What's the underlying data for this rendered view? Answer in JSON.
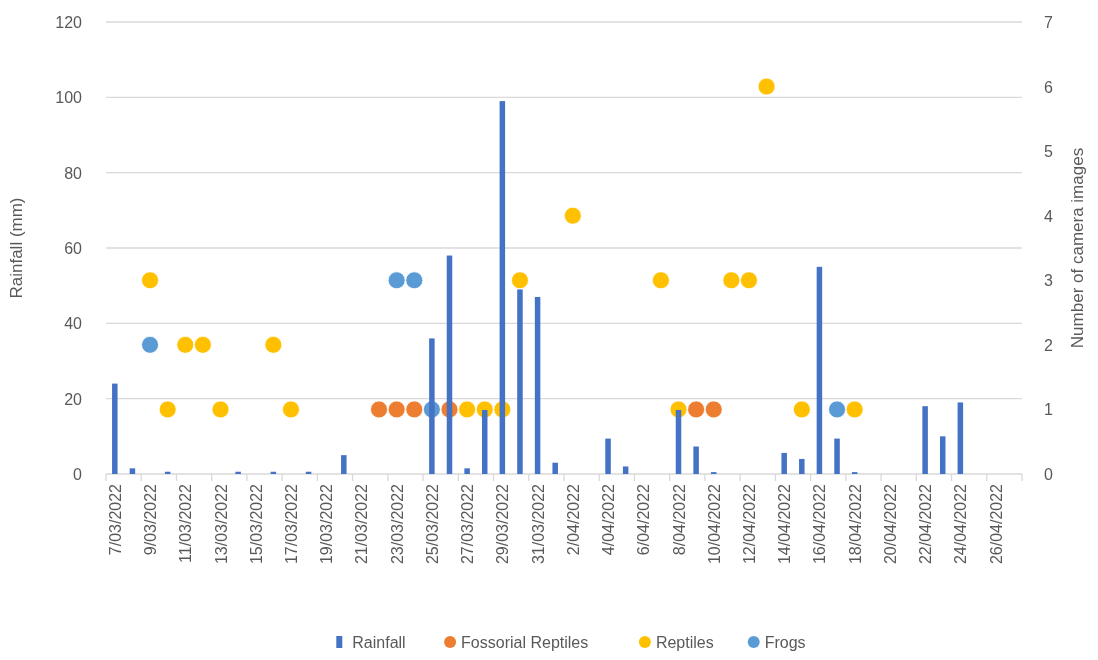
{
  "chart_data": {
    "type": "bar",
    "ylabel": "Rainfall (mm)",
    "y2label": "Number of camera images",
    "categories": [
      "7/03/2022",
      null,
      "9/03/2022",
      null,
      "11/03/2022",
      null,
      "13/03/2022",
      null,
      "15/03/2022",
      null,
      "17/03/2022",
      null,
      "19/03/2022",
      null,
      "21/03/2022",
      null,
      "23/03/2022",
      null,
      "25/03/2022",
      null,
      "27/03/2022",
      null,
      "29/03/2022",
      null,
      "31/03/2022",
      null,
      "2/04/2022",
      null,
      "4/04/2022",
      null,
      "6/04/2022",
      null,
      "8/04/2022",
      null,
      "10/04/2022",
      null,
      "12/04/2022",
      null,
      "14/04/2022",
      null,
      "16/04/2022",
      null,
      "18/04/2022",
      null,
      "20/04/2022",
      null,
      "22/04/2022",
      null,
      "24/04/2022",
      null,
      "26/04/2022",
      null
    ],
    "series": [
      {
        "name": "Rainfall",
        "color": "#4472c4",
        "values": [
          24,
          1.5,
          0,
          0.6,
          0,
          0,
          0,
          0.6,
          0,
          0.6,
          0,
          0.6,
          0,
          5,
          0,
          0,
          0,
          0,
          36,
          58,
          1.5,
          17,
          99,
          49,
          47,
          3,
          0,
          0,
          9.4,
          2,
          0,
          0,
          17,
          7.3,
          0.5,
          0,
          0,
          0,
          5.6,
          4,
          55,
          9.4,
          0.5,
          0,
          0,
          0,
          18,
          10,
          19,
          0,
          0,
          0
        ]
      },
      {
        "name": "Fossorial Reptiles",
        "type": "scatter",
        "axis": "y2",
        "color": "#ed7d31",
        "values": [
          null,
          null,
          null,
          null,
          null,
          null,
          null,
          null,
          null,
          null,
          null,
          null,
          null,
          null,
          null,
          1,
          1,
          1,
          null,
          1,
          null,
          null,
          null,
          null,
          null,
          null,
          null,
          null,
          null,
          null,
          null,
          null,
          null,
          1,
          1,
          null,
          null,
          null,
          null,
          null,
          null,
          null,
          null,
          null,
          null,
          null,
          null,
          null,
          null,
          null,
          null,
          null
        ]
      },
      {
        "name": "Reptiles",
        "type": "scatter",
        "axis": "y2",
        "color": "#ffc000",
        "values": [
          null,
          null,
          3,
          1,
          2,
          2,
          1,
          null,
          null,
          2,
          1,
          null,
          null,
          null,
          null,
          null,
          null,
          null,
          null,
          null,
          1,
          1,
          1,
          3,
          null,
          null,
          4,
          null,
          null,
          null,
          null,
          3,
          1,
          null,
          null,
          3,
          3,
          6,
          null,
          1,
          null,
          null,
          1,
          null,
          null,
          null,
          null,
          null,
          null,
          null,
          null,
          null
        ]
      },
      {
        "name": "Frogs",
        "type": "scatter",
        "axis": "y2",
        "color": "#5b9bd5",
        "values": [
          null,
          null,
          2,
          null,
          null,
          null,
          null,
          null,
          null,
          null,
          null,
          null,
          null,
          null,
          null,
          null,
          3,
          3,
          1,
          null,
          null,
          null,
          null,
          null,
          null,
          null,
          null,
          null,
          null,
          null,
          null,
          null,
          null,
          null,
          null,
          null,
          null,
          null,
          null,
          null,
          null,
          1,
          null,
          null,
          null,
          null,
          null,
          null,
          null,
          null,
          null,
          null
        ]
      }
    ],
    "ylim": [
      0,
      120
    ],
    "yticks": [
      0,
      20,
      40,
      60,
      80,
      100,
      120
    ],
    "y2lim": [
      0,
      7
    ],
    "y2ticks": [
      0,
      1,
      2,
      3,
      4,
      5,
      6,
      7
    ],
    "grid": "y",
    "legend": "bottom",
    "marker": "circle"
  }
}
